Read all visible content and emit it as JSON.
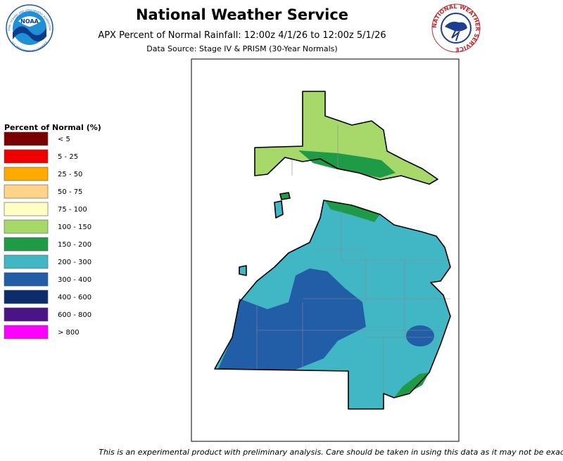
{
  "header": {
    "title": "National Weather Service",
    "subtitle": "APX Percent of Normal Rainfall: 12:00z 4/1/26 to 12:00z 5/1/26",
    "source": "Data Source: Stage IV & PRISM (30-Year Normals)"
  },
  "logos": {
    "noaa": "NOAA",
    "noaa_ring": "NATIONAL OCEANIC AND ATMOSPHERIC ADMINISTRATION",
    "noaa_ring_bottom": "U.S. DEPARTMENT OF COMMERCE",
    "nws_ring": "NATIONAL WEATHER SERVICE"
  },
  "legend": {
    "title": "Percent of Normal (%)",
    "items": [
      {
        "label": "< 5",
        "color": "#7a0000"
      },
      {
        "label": "5 - 25",
        "color": "#ee0000"
      },
      {
        "label": "25 - 50",
        "color": "#ffaa00"
      },
      {
        "label": "50 - 75",
        "color": "#ffd388"
      },
      {
        "label": "75 - 100",
        "color": "#ffffc4"
      },
      {
        "label": "100 - 150",
        "color": "#a6d96a"
      },
      {
        "label": "150 - 200",
        "color": "#1f9b48"
      },
      {
        "label": "200 - 300",
        "color": "#41b6c4"
      },
      {
        "label": "300 - 400",
        "color": "#225ea8"
      },
      {
        "label": "400 - 600",
        "color": "#0c2c6a"
      },
      {
        "label": "600 - 800",
        "color": "#4a1486"
      },
      {
        "label": "> 800",
        "color": "#ff00ff"
      }
    ]
  },
  "footer": "This is an experimental product with preliminary analysis. Care should be taken in using this data as it may not be exact."
}
